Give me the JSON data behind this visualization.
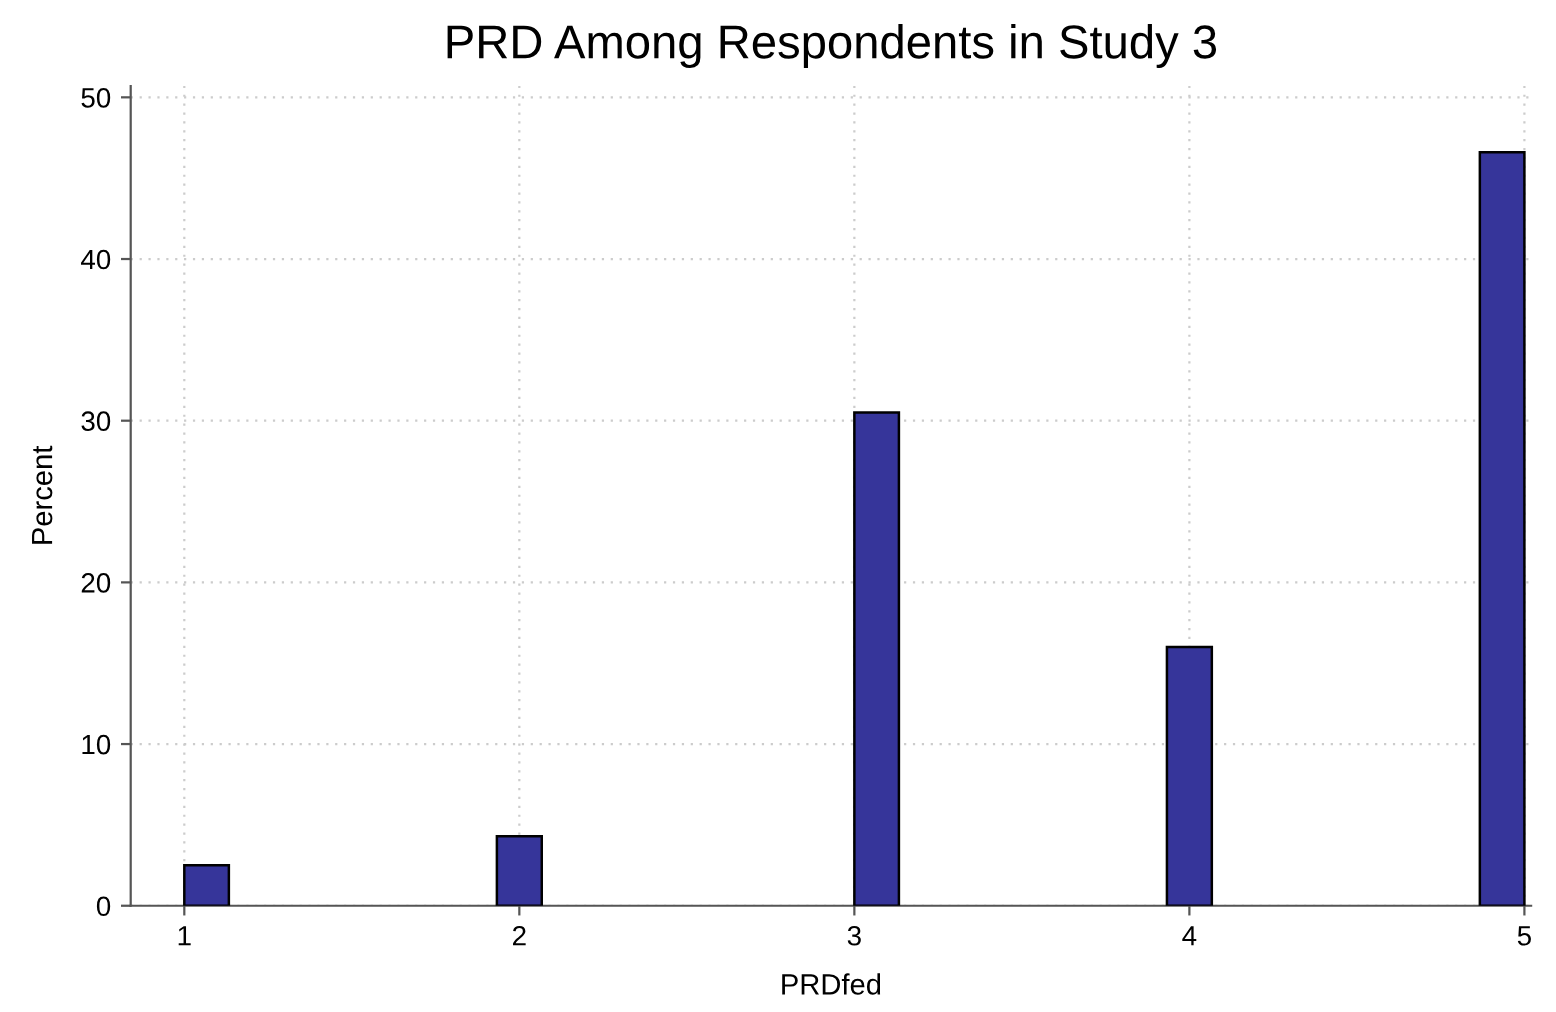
{
  "chart_data": {
    "type": "histogram",
    "title": "PRD Among Respondents in Study 3",
    "xlabel": "PRDfed",
    "ylabel": "Percent",
    "bins": [
      1,
      1.133,
      1.267,
      1.4,
      1.533,
      1.667,
      1.8,
      1.933,
      2.067,
      2.2,
      2.333,
      2.467,
      2.6,
      2.733,
      2.867,
      3,
      3.133,
      3.267,
      3.4,
      3.533,
      3.667,
      3.8,
      3.933,
      4.067,
      4.2,
      4.333,
      4.467,
      4.6,
      4.733,
      4.867,
      5
    ],
    "values": [
      2.5,
      0,
      0,
      0,
      0,
      0,
      0,
      4.3,
      0,
      0,
      0,
      0,
      0,
      0,
      0,
      30.5,
      0,
      0,
      0,
      0,
      0,
      0,
      16.0,
      0,
      0,
      0,
      0,
      0,
      0,
      46.6
    ],
    "color": "#36359a",
    "xlim": [
      0.84,
      5.02
    ],
    "xticks": [
      1,
      2,
      3,
      4,
      5
    ],
    "ylim": [
      0,
      50.7
    ],
    "yticks": [
      0,
      10,
      20,
      30,
      40,
      50
    ],
    "grid": true
  }
}
